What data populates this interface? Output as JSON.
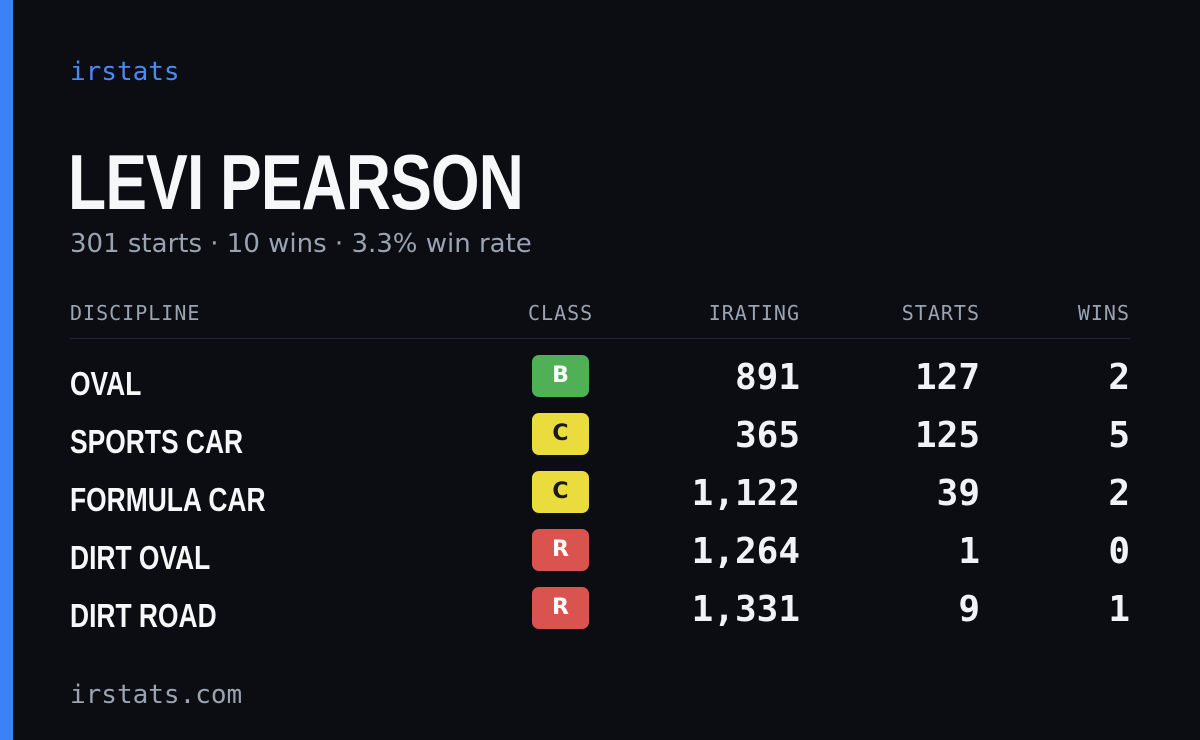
{
  "brand": "irstats",
  "driver": {
    "name": "LEVI PEARSON",
    "summary": "301 starts · 10 wins · 3.3% win rate"
  },
  "table": {
    "headers": {
      "discipline": "DISCIPLINE",
      "class": "CLASS",
      "irating": "IRATING",
      "starts": "STARTS",
      "wins": "WINS"
    },
    "rows": [
      {
        "discipline": "OVAL",
        "class": "B",
        "irating": "891",
        "starts": "127",
        "wins": "2"
      },
      {
        "discipline": "SPORTS CAR",
        "class": "C",
        "irating": "365",
        "starts": "125",
        "wins": "5"
      },
      {
        "discipline": "FORMULA CAR",
        "class": "C",
        "irating": "1,122",
        "starts": "39",
        "wins": "2"
      },
      {
        "discipline": "DIRT OVAL",
        "class": "R",
        "irating": "1,264",
        "starts": "1",
        "wins": "0"
      },
      {
        "discipline": "DIRT ROAD",
        "class": "R",
        "irating": "1,331",
        "starts": "9",
        "wins": "1"
      }
    ]
  },
  "class_colors": {
    "B": {
      "bg": "#4fb055",
      "fg": "#ffffff"
    },
    "C": {
      "bg": "#e9dc3c",
      "fg": "#1a1a1a"
    },
    "R": {
      "bg": "#d9534f",
      "fg": "#ffffff"
    }
  },
  "colors": {
    "accent": "#3b82f6",
    "background": "#0b0d13"
  },
  "footer": "irstats.com"
}
